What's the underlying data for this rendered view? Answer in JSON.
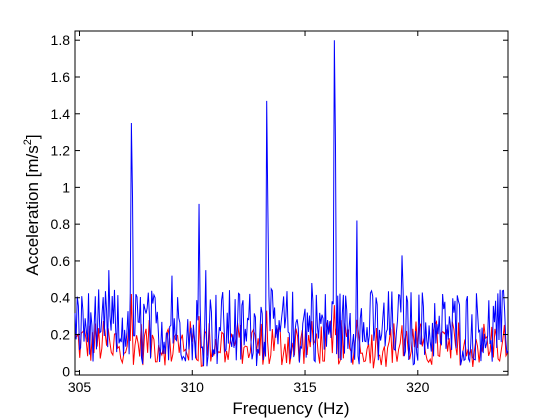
{
  "chart_data": {
    "type": "line",
    "title": "",
    "xlabel": "Frequency (Hz)",
    "ylabel_main": "Acceleration [m/s",
    "ylabel_sup": "2",
    "ylabel_end": "]",
    "xlim": [
      304.8,
      324
    ],
    "ylim": [
      -0.02,
      1.85
    ],
    "xticks": [
      305,
      310,
      315,
      320
    ],
    "xtick_labels": [
      "305",
      "310",
      "315",
      "320"
    ],
    "yticks": [
      0,
      0.2,
      0.4,
      0.6,
      0.8,
      1.0,
      1.2,
      1.4,
      1.6,
      1.8
    ],
    "ytick_labels": [
      "0",
      "0.2",
      "0.4",
      "0.6",
      "0.8",
      "1",
      "1.2",
      "1.4",
      "1.6",
      "1.8"
    ],
    "grid": false,
    "legend": "none",
    "colors": {
      "series_blue": "#0000ff",
      "series_red": "#ff0000",
      "axes": "#000000",
      "background": "#ffffff"
    },
    "series": [
      {
        "color": "#0000ff",
        "noise_range": [
          0.05,
          0.45
        ],
        "peaks": [
          {
            "x": 306.3,
            "y": 0.55
          },
          {
            "x": 307.3,
            "y": 1.35
          },
          {
            "x": 307.35,
            "y": 0.95
          },
          {
            "x": 309.1,
            "y": 0.52
          },
          {
            "x": 310.3,
            "y": 0.91
          },
          {
            "x": 310.6,
            "y": 0.55
          },
          {
            "x": 313.3,
            "y": 1.47
          },
          {
            "x": 313.35,
            "y": 0.9
          },
          {
            "x": 315.3,
            "y": 0.48
          },
          {
            "x": 316.3,
            "y": 1.8
          },
          {
            "x": 316.35,
            "y": 1.23
          },
          {
            "x": 317.3,
            "y": 0.82
          },
          {
            "x": 319.3,
            "y": 0.63
          }
        ]
      },
      {
        "color": "#ff0000",
        "noise_range": [
          0.03,
          0.28
        ],
        "peaks": [
          {
            "x": 307.3,
            "y": 0.42
          },
          {
            "x": 310.3,
            "y": 0.3
          },
          {
            "x": 313.3,
            "y": 0.33
          },
          {
            "x": 316.3,
            "y": 0.36
          },
          {
            "x": 317.3,
            "y": 0.28
          },
          {
            "x": 319.3,
            "y": 0.25
          }
        ]
      }
    ]
  }
}
